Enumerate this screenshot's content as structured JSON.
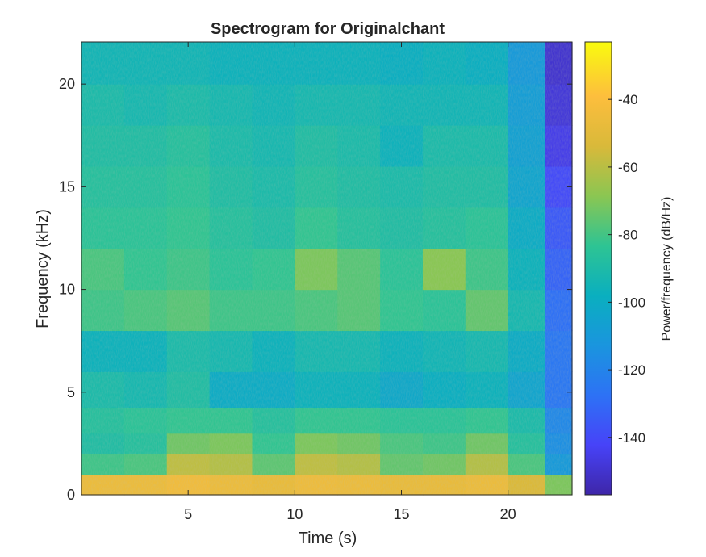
{
  "chart_data": {
    "type": "heatmap",
    "title": "Spectrogram for Originalchant",
    "xlabel": "Time (s)",
    "ylabel": "Frequency (kHz)",
    "xlim": [
      0,
      23
    ],
    "ylim": [
      0,
      22.05
    ],
    "x_ticks": [
      5,
      10,
      15,
      20
    ],
    "x_tick_labels": [
      "5",
      "10",
      "15",
      "20"
    ],
    "y_ticks": [
      0,
      5,
      10,
      15,
      20
    ],
    "y_tick_labels": [
      "0",
      "5",
      "10",
      "15",
      "20"
    ],
    "colorbar": {
      "label": "Power/frequency (dB/Hz)",
      "range": [
        -157,
        -23
      ],
      "ticks": [
        -40,
        -60,
        -80,
        -100,
        -120,
        -140
      ],
      "tick_labels": [
        "-40",
        "-60",
        "-80",
        "-100",
        "-120",
        "-140"
      ],
      "colormap": "parula",
      "colors": [
        "#3e26a8",
        "#4743f8",
        "#2d72f5",
        "#1a95de",
        "#0aafbf",
        "#2ec493",
        "#8bc652",
        "#d9b93a",
        "#fdbe3d",
        "#f9fb0e"
      ]
    },
    "grid": false,
    "level_key": {
      "-40": "bright yellow-orange",
      "-60": "yellow-green",
      "-80": "green-cyan",
      "-100": "cyan",
      "-120": "blue",
      "-140": "deep blue"
    },
    "approx_power_dB_by_time_and_frequency": {
      "time_s": [
        1,
        3,
        5,
        7,
        9,
        11,
        13,
        15,
        17,
        19,
        21,
        22.5
      ],
      "frequency_kHz": [
        0.5,
        1.5,
        2.5,
        3.5,
        5,
        7,
        9,
        11,
        13,
        15,
        17,
        19,
        21
      ],
      "values": [
        [
          -45,
          -45,
          -43,
          -45,
          -46,
          -44,
          -45,
          -46,
          -46,
          -45,
          -52,
          -70
        ],
        [
          -80,
          -78,
          -58,
          -60,
          -75,
          -58,
          -60,
          -74,
          -72,
          -60,
          -78,
          -110
        ],
        [
          -88,
          -86,
          -72,
          -70,
          -82,
          -70,
          -72,
          -78,
          -80,
          -72,
          -86,
          -115
        ],
        [
          -86,
          -84,
          -82,
          -82,
          -86,
          -82,
          -82,
          -84,
          -84,
          -82,
          -90,
          -118
        ],
        [
          -90,
          -92,
          -88,
          -100,
          -100,
          -96,
          -96,
          -102,
          -98,
          -96,
          -104,
          -125
        ],
        [
          -96,
          -96,
          -90,
          -92,
          -96,
          -92,
          -92,
          -96,
          -94,
          -92,
          -100,
          -125
        ],
        [
          -80,
          -78,
          -76,
          -80,
          -80,
          -78,
          -76,
          -82,
          -84,
          -74,
          -92,
          -128
        ],
        [
          -78,
          -82,
          -80,
          -84,
          -82,
          -70,
          -76,
          -84,
          -68,
          -80,
          -96,
          -132
        ],
        [
          -84,
          -84,
          -82,
          -86,
          -88,
          -82,
          -86,
          -88,
          -86,
          -84,
          -100,
          -135
        ],
        [
          -86,
          -86,
          -84,
          -88,
          -90,
          -86,
          -88,
          -90,
          -88,
          -88,
          -104,
          -140
        ],
        [
          -88,
          -88,
          -86,
          -90,
          -92,
          -88,
          -90,
          -96,
          -90,
          -90,
          -106,
          -145
        ],
        [
          -90,
          -92,
          -90,
          -92,
          -94,
          -92,
          -92,
          -94,
          -94,
          -94,
          -108,
          -148
        ],
        [
          -94,
          -94,
          -94,
          -96,
          -96,
          -96,
          -96,
          -98,
          -96,
          -98,
          -110,
          -150
        ]
      ]
    }
  }
}
